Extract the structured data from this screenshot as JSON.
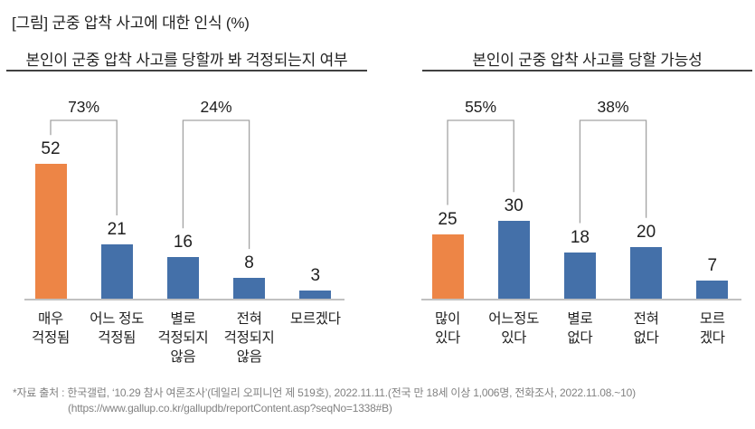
{
  "figure_title": "[그림] 군중 압착 사고에 대한 인식 (%)",
  "source": {
    "line1": "*자료 출처 : 한국갤럽, ‘10.29 참사 여론조사’(데일리 오피니언 제 519호), 2022.11.11.(전국 만 18세 이상 1,006명, 전화조사, 2022.11.08.~10)",
    "line2": "(https://www.gallup.co.kr/gallupdb/reportContent.asp?seqNo=1338#B)"
  },
  "colors": {
    "highlight_bar": "#ED8546",
    "bar": "#4470A9",
    "bracket": "#A3A3A3",
    "axis": "#C1C1C1",
    "text": "#1F1F1F",
    "source_text": "#828282"
  },
  "chart_data": [
    {
      "type": "bar",
      "title": "본인이 군중 압착 사고를 당할까 봐 걱정되는지 여부",
      "categories": [
        "매우\n걱정됨",
        "어느 정도\n걱정됨",
        "별로\n걱정되지\n않음",
        "전혀\n걱정되지\n않음",
        "모르겠다"
      ],
      "values": [
        52,
        21,
        16,
        8,
        3
      ],
      "unit": "%",
      "highlight_index": 0,
      "value_labels_shown": true,
      "ylim": [
        0,
        60
      ],
      "grid": false,
      "brackets": [
        {
          "label": "73%",
          "from": 0,
          "to": 1
        },
        {
          "label": "24%",
          "from": 2,
          "to": 3
        }
      ]
    },
    {
      "type": "bar",
      "title": "본인이 군중 압착 사고를 당할 가능성",
      "categories": [
        "많이\n있다",
        "어느정도\n있다",
        "별로\n없다",
        "전혀\n없다",
        "모르\n겠다"
      ],
      "values": [
        25,
        30,
        18,
        20,
        7
      ],
      "unit": "%",
      "highlight_index": 0,
      "value_labels_shown": true,
      "ylim": [
        0,
        60
      ],
      "grid": false,
      "brackets": [
        {
          "label": "55%",
          "from": 0,
          "to": 1
        },
        {
          "label": "38%",
          "from": 2,
          "to": 3
        }
      ]
    }
  ]
}
